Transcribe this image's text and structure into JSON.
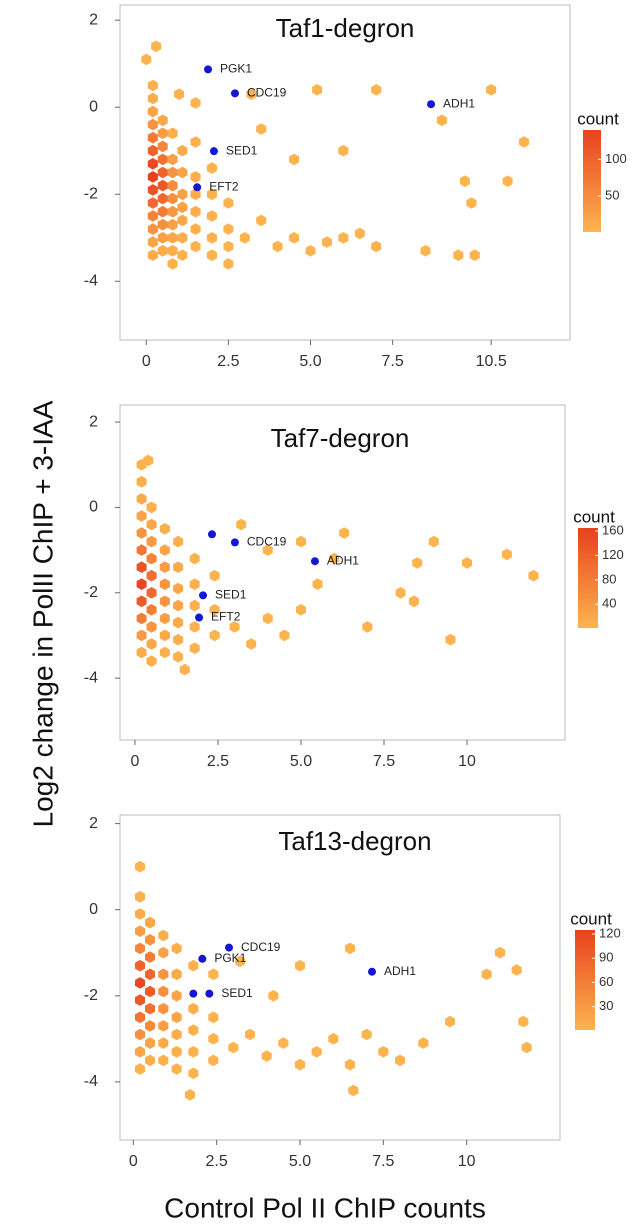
{
  "ylabel": "Log2  change in PolII ChIP + 3-IAA",
  "xlabel": "Control Pol II ChIP counts",
  "chart_data": [
    {
      "type": "hexbin",
      "title": "Taf1-degron",
      "xlim": [
        -0.8,
        12.9
      ],
      "ylim": [
        -5.35,
        2.35
      ],
      "xticks": [
        0,
        2.5,
        {
          "value": 5,
          "label": "5.0"
        },
        7.5,
        10.5
      ],
      "yticks": [
        2,
        0,
        -2,
        -4
      ],
      "colors": [
        "#fdb44e",
        "#e8411f"
      ],
      "legend_title": "count",
      "color_range": [
        1,
        140
      ],
      "colorbar_ticks": [
        50,
        100
      ],
      "hexes": {
        "x": [
          0.2,
          0.2,
          0.2,
          0.2,
          0.2,
          0.2,
          0.2,
          0.2,
          0.2,
          0.2,
          0.2,
          0.2,
          0.2,
          0.2,
          0.5,
          0.5,
          0.5,
          0.5,
          0.5,
          0.5,
          0.5,
          0.5,
          0.5,
          0.5,
          0.5,
          0.8,
          0.8,
          0.8,
          0.8,
          0.8,
          0.8,
          0.8,
          0.8,
          0.8,
          0.8,
          1.1,
          1.1,
          1.1,
          1.1,
          1.1,
          1.1,
          1.1,
          1.5,
          1.5,
          1.5,
          1.5,
          1.5,
          1.5,
          2.0,
          2.0,
          2.0,
          2.0,
          2.0,
          2.5,
          2.5,
          2.5,
          2.5,
          3.0,
          3.5,
          4.0,
          4.5,
          5.0,
          5.5,
          6.0,
          6.5,
          7.0,
          8.5,
          9.5,
          10.0,
          11.0,
          11.5,
          10.5,
          9.0,
          7.0,
          5.2,
          3.5,
          4.5,
          6.0,
          0.3,
          0.0,
          3.2,
          9.7,
          9.9,
          1.0,
          1.5
        ],
        "y": [
          0.5,
          0.2,
          -0.1,
          -0.4,
          -0.7,
          -1.0,
          -1.3,
          -1.6,
          -1.9,
          -2.2,
          -2.5,
          -2.8,
          -3.1,
          -3.4,
          -0.3,
          -0.6,
          -0.9,
          -1.2,
          -1.5,
          -1.8,
          -2.1,
          -2.4,
          -2.7,
          -3.0,
          -3.3,
          -0.6,
          -1.2,
          -1.5,
          -1.8,
          -2.1,
          -2.4,
          -2.7,
          -3.0,
          -3.3,
          -3.6,
          -1.0,
          -1.5,
          -2.0,
          -2.3,
          -2.6,
          -3.0,
          -3.4,
          -0.8,
          -1.6,
          -2.0,
          -2.4,
          -2.8,
          -3.2,
          -1.4,
          -2.0,
          -2.5,
          -3.0,
          -3.4,
          -2.2,
          -2.8,
          -3.2,
          -3.6,
          -3.0,
          -2.6,
          -3.2,
          -3.0,
          -3.3,
          -3.1,
          -3.0,
          -2.9,
          -3.2,
          -3.3,
          -3.4,
          -3.4,
          -1.7,
          -0.8,
          0.4,
          -0.3,
          0.4,
          0.4,
          -0.5,
          -1.2,
          -1.0,
          1.4,
          1.1,
          0.3,
          -1.7,
          -2.2,
          0.3,
          0.1
        ],
        "counts": [
          5,
          10,
          20,
          40,
          70,
          100,
          130,
          140,
          120,
          90,
          60,
          40,
          20,
          8,
          15,
          30,
          55,
          80,
          100,
          110,
          90,
          70,
          45,
          25,
          10,
          8,
          25,
          40,
          50,
          45,
          35,
          25,
          15,
          8,
          3,
          10,
          20,
          25,
          22,
          15,
          8,
          4,
          5,
          10,
          12,
          10,
          6,
          3,
          3,
          5,
          5,
          3,
          2,
          2,
          2,
          2,
          1,
          1,
          1,
          1,
          1,
          1,
          1,
          1,
          1,
          1,
          1,
          1,
          1,
          1,
          1,
          1,
          1,
          1,
          1,
          1,
          1,
          1,
          1,
          1,
          1,
          1,
          1,
          2,
          2
        ]
      },
      "points": {
        "color": "#1515d6",
        "labels": [
          "PGK1",
          "CDC19",
          "ADH1",
          "SED1",
          "EFT2"
        ],
        "x": [
          1.88,
          2.7,
          8.67,
          2.06,
          1.55
        ],
        "y": [
          0.87,
          0.32,
          0.07,
          -1.01,
          -1.84
        ]
      }
    },
    {
      "type": "hexbin",
      "title": "Taf7-degron",
      "xlim": [
        -0.45,
        12.95
      ],
      "ylim": [
        -5.45,
        2.4
      ],
      "xticks": [
        0,
        2.5,
        {
          "value": 5,
          "label": "5.0"
        },
        7.5,
        10
      ],
      "yticks": [
        2,
        0,
        -2,
        -4
      ],
      "colors": [
        "#fdb44e",
        "#e8411f"
      ],
      "legend_title": "count",
      "color_range": [
        1,
        165
      ],
      "colorbar_ticks": [
        40,
        80,
        120,
        160
      ],
      "hexes": {
        "x": [
          0.2,
          0.2,
          0.2,
          0.2,
          0.2,
          0.2,
          0.2,
          0.2,
          0.2,
          0.2,
          0.2,
          0.2,
          0.5,
          0.5,
          0.5,
          0.5,
          0.5,
          0.5,
          0.5,
          0.5,
          0.5,
          0.5,
          0.9,
          0.9,
          0.9,
          0.9,
          0.9,
          0.9,
          0.9,
          0.9,
          1.3,
          1.3,
          1.3,
          1.3,
          1.3,
          1.3,
          1.3,
          1.8,
          1.8,
          1.8,
          1.8,
          1.8,
          2.4,
          2.4,
          2.4,
          3.0,
          3.5,
          4.0,
          4.5,
          5.0,
          5.5,
          6.0,
          6.3,
          7.0,
          8.0,
          8.5,
          9.0,
          9.5,
          11.2,
          12.0,
          10.0,
          3.2,
          4.0,
          5.0,
          8.4,
          0.4,
          1.5
        ],
        "y": [
          1.0,
          0.6,
          0.2,
          -0.2,
          -0.6,
          -1.0,
          -1.4,
          -1.8,
          -2.2,
          -2.6,
          -3.0,
          -3.4,
          0.0,
          -0.4,
          -0.8,
          -1.2,
          -1.6,
          -2.0,
          -2.4,
          -2.8,
          -3.2,
          -3.6,
          -0.5,
          -1.0,
          -1.4,
          -1.8,
          -2.2,
          -2.6,
          -3.0,
          -3.4,
          -0.8,
          -1.4,
          -1.9,
          -2.3,
          -2.7,
          -3.1,
          -3.5,
          -1.2,
          -1.8,
          -2.3,
          -2.8,
          -3.3,
          -1.6,
          -2.4,
          -3.0,
          -2.8,
          -3.2,
          -2.6,
          -3.0,
          -2.4,
          -1.8,
          -1.2,
          -0.6,
          -2.8,
          -2.0,
          -1.3,
          -0.8,
          -3.1,
          -1.1,
          -1.6,
          -1.3,
          -0.4,
          -1.0,
          -0.8,
          -2.2,
          1.1,
          -3.8
        ],
        "counts": [
          3,
          6,
          12,
          25,
          50,
          90,
          140,
          160,
          130,
          80,
          40,
          12,
          8,
          20,
          40,
          70,
          100,
          110,
          80,
          45,
          20,
          5,
          6,
          20,
          35,
          45,
          45,
          30,
          15,
          5,
          5,
          12,
          20,
          22,
          15,
          8,
          3,
          3,
          6,
          8,
          5,
          2,
          2,
          3,
          2,
          1,
          1,
          1,
          1,
          1,
          1,
          1,
          1,
          1,
          1,
          1,
          1,
          1,
          1,
          1,
          1,
          1,
          1,
          1,
          1,
          1,
          1
        ]
      },
      "points": {
        "color": "#1515d6",
        "labels": [
          null,
          "CDC19",
          "ADH1",
          "SED1",
          "EFT2"
        ],
        "x": [
          2.32,
          3.01,
          5.42,
          2.05,
          1.93
        ],
        "y": [
          -0.63,
          -0.82,
          -1.26,
          -2.06,
          -2.58
        ]
      }
    },
    {
      "type": "hexbin",
      "title": "Taf13-degron",
      "xlim": [
        -0.4,
        12.8
      ],
      "ylim": [
        -5.35,
        2.2
      ],
      "xticks": [
        0,
        2.5,
        {
          "value": 5,
          "label": "5.0"
        },
        7.5,
        10
      ],
      "yticks": [
        2,
        0,
        -2,
        -4
      ],
      "colors": [
        "#fdb44e",
        "#e8411f"
      ],
      "legend_title": "count",
      "color_range": [
        1,
        125
      ],
      "colorbar_ticks": [
        30,
        60,
        90,
        120
      ],
      "hexes": {
        "x": [
          0.2,
          0.2,
          0.2,
          0.2,
          0.2,
          0.2,
          0.2,
          0.2,
          0.2,
          0.2,
          0.2,
          0.2,
          0.5,
          0.5,
          0.5,
          0.5,
          0.5,
          0.5,
          0.5,
          0.5,
          0.5,
          0.9,
          0.9,
          0.9,
          0.9,
          0.9,
          0.9,
          0.9,
          0.9,
          1.3,
          1.3,
          1.3,
          1.3,
          1.3,
          1.3,
          1.3,
          1.8,
          1.8,
          1.8,
          1.8,
          1.8,
          2.4,
          2.4,
          2.4,
          2.4,
          1.7,
          3.0,
          3.5,
          4.0,
          4.5,
          5.0,
          5.5,
          6.0,
          6.5,
          7.0,
          7.5,
          8.0,
          8.7,
          9.5,
          10.6,
          11.0,
          11.5,
          11.8,
          11.7,
          6.5,
          5.0,
          4.2,
          3.2,
          6.6
        ],
        "y": [
          1.0,
          0.3,
          -0.1,
          -0.5,
          -0.9,
          -1.3,
          -1.7,
          -2.1,
          -2.5,
          -2.9,
          -3.3,
          -3.7,
          -0.3,
          -0.7,
          -1.1,
          -1.5,
          -1.9,
          -2.3,
          -2.7,
          -3.1,
          -3.5,
          -0.6,
          -1.0,
          -1.5,
          -1.9,
          -2.3,
          -2.7,
          -3.1,
          -3.5,
          -0.9,
          -1.5,
          -2.0,
          -2.5,
          -2.9,
          -3.3,
          -3.7,
          -1.3,
          -2.3,
          -2.8,
          -3.3,
          -3.8,
          -1.5,
          -2.5,
          -3.0,
          -3.5,
          -4.3,
          -3.2,
          -2.9,
          -3.4,
          -3.1,
          -3.6,
          -3.3,
          -3.0,
          -3.6,
          -2.9,
          -3.3,
          -3.5,
          -3.1,
          -2.6,
          -1.5,
          -1.0,
          -1.4,
          -3.2,
          -2.6,
          -0.9,
          -1.3,
          -2.0,
          -1.2,
          -4.2
        ],
        "counts": [
          2,
          4,
          10,
          25,
          50,
          90,
          120,
          100,
          70,
          40,
          15,
          4,
          15,
          35,
          60,
          85,
          95,
          75,
          45,
          20,
          6,
          8,
          20,
          35,
          40,
          35,
          25,
          12,
          4,
          5,
          12,
          18,
          16,
          10,
          5,
          2,
          3,
          6,
          4,
          3,
          1,
          2,
          3,
          2,
          1,
          1,
          1,
          1,
          1,
          1,
          1,
          1,
          1,
          1,
          1,
          1,
          1,
          1,
          1,
          1,
          1,
          1,
          1,
          1,
          1,
          1,
          1,
          1,
          1
        ]
      },
      "points": {
        "color": "#1515d6",
        "labels": [
          "CDC19",
          "PGK1",
          "ADH1",
          null,
          "SED1"
        ],
        "x": [
          2.87,
          2.07,
          7.16,
          1.8,
          2.28
        ],
        "y": [
          -0.88,
          -1.14,
          -1.44,
          -1.95,
          -1.95
        ]
      }
    }
  ]
}
